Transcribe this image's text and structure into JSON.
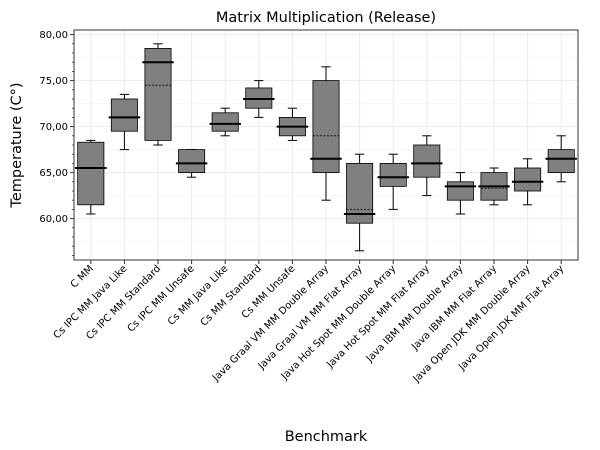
{
  "chart_data": {
    "type": "boxplot",
    "title": "Matrix Multiplication (Release)",
    "xlabel": "Benchmark",
    "ylabel": "Temperature (C°)",
    "ylim": [
      55.5,
      80.5
    ],
    "yticks": [
      "60,00",
      "65,00",
      "70,00",
      "75,00",
      "80,00"
    ],
    "grid": true,
    "colors": {
      "box": "#808080",
      "line": "#000000",
      "grid": "#ebebeb",
      "frame": "#333333"
    },
    "categories": [
      "C MM",
      "Cs IPC MM Java Like",
      "Cs IPC MM Standard",
      "Cs IPC MM Unsafe",
      "Cs MM Java Like",
      "Cs MM Standard",
      "Cs MM Unsafe",
      "Java Graal VM MM Double Array",
      "Java Graal VM MM Flat Array",
      "Java Hot Spot MM Double Array",
      "Java Hot Spot MM Flat Array",
      "Java IBM MM Double Array",
      "Java IBM MM Flat Array",
      "Java Open JDK MM Double Array",
      "Java Open JDK MM Flat Array"
    ],
    "boxes": [
      {
        "whisker_low": 60.5,
        "q1": 61.5,
        "median": 65.5,
        "q3": 68.3,
        "whisker_high": 68.5,
        "mean": 65.5
      },
      {
        "whisker_low": 67.5,
        "q1": 69.5,
        "median": 71.0,
        "q3": 73.0,
        "whisker_high": 73.5,
        "mean": 71.0
      },
      {
        "whisker_low": 68.0,
        "q1": 68.5,
        "median": 77.0,
        "q3": 78.5,
        "whisker_high": 79.0,
        "mean": 74.5
      },
      {
        "whisker_low": 64.5,
        "q1": 65.0,
        "median": 66.0,
        "q3": 67.5,
        "whisker_high": 67.5,
        "mean": 66.0
      },
      {
        "whisker_low": 69.0,
        "q1": 69.5,
        "median": 70.3,
        "q3": 71.5,
        "whisker_high": 72.0,
        "mean": 70.3
      },
      {
        "whisker_low": 71.0,
        "q1": 72.0,
        "median": 73.0,
        "q3": 74.2,
        "whisker_high": 75.0,
        "mean": 73.0
      },
      {
        "whisker_low": 68.5,
        "q1": 69.0,
        "median": 70.0,
        "q3": 71.0,
        "whisker_high": 72.0,
        "mean": 70.0
      },
      {
        "whisker_low": 62.0,
        "q1": 65.0,
        "median": 66.5,
        "q3": 75.0,
        "whisker_high": 76.5,
        "mean": 69.0
      },
      {
        "whisker_low": 56.5,
        "q1": 59.5,
        "median": 60.5,
        "q3": 66.0,
        "whisker_high": 67.0,
        "mean": 61.0
      },
      {
        "whisker_low": 61.0,
        "q1": 63.5,
        "median": 64.5,
        "q3": 66.0,
        "whisker_high": 67.0,
        "mean": 64.5
      },
      {
        "whisker_low": 62.5,
        "q1": 64.5,
        "median": 66.0,
        "q3": 68.0,
        "whisker_high": 69.0,
        "mean": 66.0
      },
      {
        "whisker_low": 60.5,
        "q1": 62.0,
        "median": 63.5,
        "q3": 64.0,
        "whisker_high": 65.0,
        "mean": 63.5
      },
      {
        "whisker_low": 61.5,
        "q1": 62.0,
        "median": 63.5,
        "q3": 65.0,
        "whisker_high": 65.5,
        "mean": 63.3
      },
      {
        "whisker_low": 61.5,
        "q1": 63.0,
        "median": 64.0,
        "q3": 65.5,
        "whisker_high": 66.5,
        "mean": 64.0
      },
      {
        "whisker_low": 64.0,
        "q1": 65.0,
        "median": 66.5,
        "q3": 67.5,
        "whisker_high": 69.0,
        "mean": 66.5
      }
    ]
  }
}
